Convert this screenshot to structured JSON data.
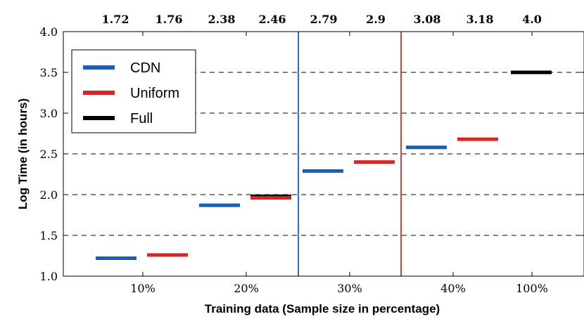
{
  "chart_data": {
    "type": "bar",
    "title": "",
    "xlabel": "Training data (Sample size in percentage)",
    "ylabel": "Log Time (in hours)",
    "ylim": [
      1.0,
      4.0
    ],
    "y_ticks": [
      "1.0",
      "1.5",
      "2.0",
      "2.5",
      "3.0",
      "3.5",
      "4.0"
    ],
    "y_tick_values": [
      1.0,
      1.5,
      2.0,
      2.5,
      3.0,
      3.5,
      4.0
    ],
    "grid": "horizontal dashed",
    "categories": [
      "10%",
      "20%",
      "30%",
      "40%",
      "100%"
    ],
    "top_labels": [
      "1.72",
      "1.76",
      "2.38",
      "2.46",
      "2.79",
      "2.9",
      "3.08",
      "3.18",
      "4.0"
    ],
    "legend": {
      "placement": "top-left",
      "entries": [
        {
          "name": "CDN",
          "color": "#1a5fb4"
        },
        {
          "name": "Uniform",
          "color": "#d62728"
        },
        {
          "name": "Full",
          "color": "#000000"
        }
      ]
    },
    "series": [
      {
        "name": "CDN",
        "color": "#1a5fb4",
        "points": [
          {
            "category": "10%",
            "value": 1.22
          },
          {
            "category": "20%",
            "value": 1.87
          },
          {
            "category": "30%",
            "value": 2.29
          },
          {
            "category": "40%",
            "value": 2.58
          }
        ]
      },
      {
        "name": "Uniform",
        "color": "#d62728",
        "points": [
          {
            "category": "10%",
            "value": 1.26
          },
          {
            "category": "20%",
            "value": 1.96
          },
          {
            "category": "30%",
            "value": 2.4
          },
          {
            "category": "40%",
            "value": 2.68
          }
        ]
      },
      {
        "name": "Full",
        "color": "#000000",
        "points": [
          {
            "category": "20%",
            "value": 1.98
          },
          {
            "category": "100%",
            "value": 3.5
          }
        ]
      }
    ],
    "vertical_lines": [
      {
        "color": "#1a5fb4",
        "x_position": 3.3
      },
      {
        "color": "#d62728",
        "x_position": 4.3
      }
    ]
  }
}
